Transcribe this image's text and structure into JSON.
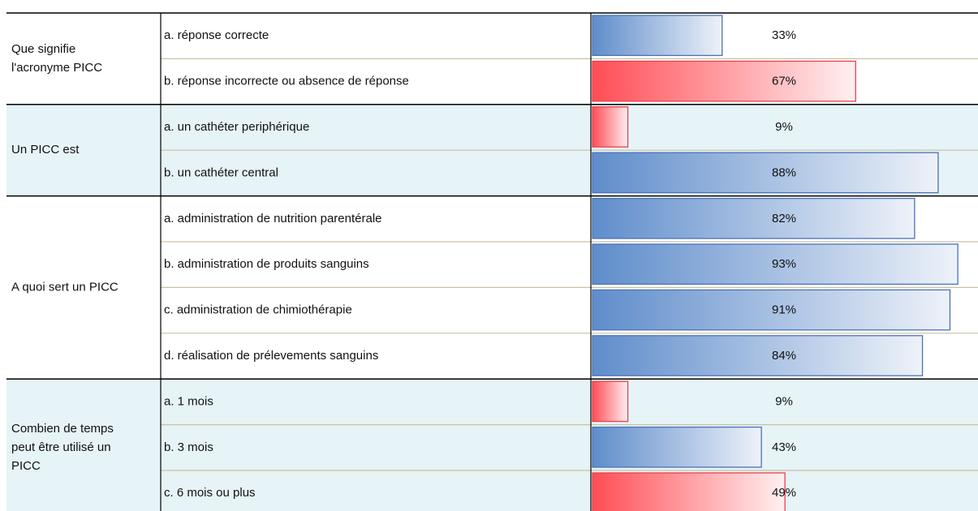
{
  "groups": [
    {
      "question": [
        "Que signifie",
        "l'acronyme PICC"
      ],
      "shaded": false,
      "answers": [
        {
          "label": "a. réponse correcte",
          "value": 33,
          "value_label": "33%",
          "color": "blue"
        },
        {
          "label": "b. réponse incorrecte ou absence de réponse",
          "value": 67,
          "value_label": "67%",
          "color": "red"
        }
      ]
    },
    {
      "question": [
        "Un PICC est"
      ],
      "shaded": true,
      "answers": [
        {
          "label": "a. un cathéter periphérique",
          "value": 9,
          "value_label": "9%",
          "color": "red"
        },
        {
          "label": "b. un cathéter central",
          "value": 88,
          "value_label": "88%",
          "color": "blue"
        }
      ]
    },
    {
      "question": [
        "A quoi sert un PICC"
      ],
      "shaded": false,
      "answers": [
        {
          "label": "a. administration de nutrition parentérale",
          "value": 82,
          "value_label": "82%",
          "color": "blue"
        },
        {
          "label": "b. administration de produits sanguins",
          "value": 93,
          "value_label": "93%",
          "color": "blue"
        },
        {
          "label": "c. administration de chimiothérapie",
          "value": 91,
          "value_label": "91%",
          "color": "blue"
        },
        {
          "label": "d. réalisation de prélevements sanguins",
          "value": 84,
          "value_label": "84%",
          "color": "blue"
        }
      ]
    },
    {
      "question": [
        "Combien de temps",
        "peut être utilisé un",
        "PICC"
      ],
      "shaded": true,
      "answers": [
        {
          "label": "a. 1 mois",
          "value": 9,
          "value_label": "9%",
          "color": "red"
        },
        {
          "label": "b. 3 mois",
          "value": 43,
          "value_label": "43%",
          "color": "blue"
        },
        {
          "label": "c. 6 mois ou plus",
          "value": 49,
          "value_label": "49%",
          "color": "red"
        }
      ]
    }
  ]
}
